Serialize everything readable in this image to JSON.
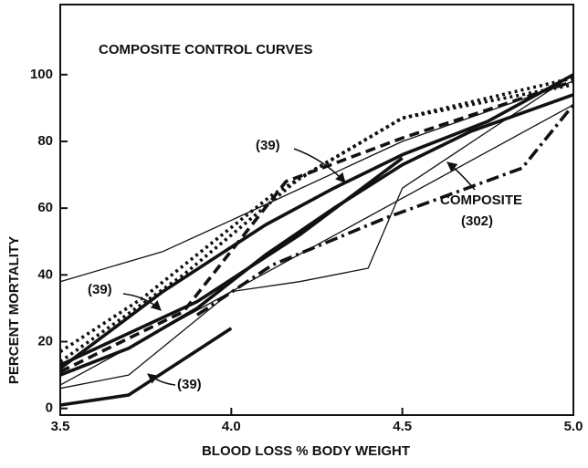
{
  "chart_data": {
    "type": "line",
    "title": "COMPOSITE CONTROL CURVES",
    "x_label": "BLOOD LOSS % BODY WEIGHT",
    "y_label": "PERCENT MORTALITY",
    "annotations": [
      "(39)",
      "(39)",
      "(39)",
      "COMPOSITE",
      "(302)"
    ],
    "xlim": [
      3.5,
      5.0
    ],
    "xticks": [
      3.5,
      {
        "value": 4,
        "label": "4.0"
      },
      4.5,
      {
        "value": 5,
        "label": "5.0"
      }
    ],
    "ylim": [
      -2,
      121
    ],
    "yticks": [
      0,
      20,
      40,
      60,
      80,
      100
    ],
    "grid": false,
    "series": [
      {
        "color": "#111111",
        "dash": "solid",
        "weight": "heavy",
        "x": [
          3.5,
          3.7,
          3.9,
          4.1,
          4.3,
          4.5,
          4.7,
          5.0
        ],
        "values": [
          10,
          18,
          30,
          46,
          60,
          73,
          83,
          94
        ]
      },
      {
        "color": "#111111",
        "dash": "solid",
        "weight": "heavy",
        "x": [
          3.5,
          3.8,
          4.1,
          4.3,
          4.5,
          4.75,
          5.0
        ],
        "values": [
          12,
          35,
          55,
          66,
          76,
          86,
          100
        ]
      },
      {
        "color": "#111111",
        "dash": "solid",
        "weight": "heavy",
        "x": [
          3.5,
          3.9,
          4.2,
          4.5
        ],
        "values": [
          13,
          32,
          52,
          75
        ]
      },
      {
        "color": "#111111",
        "dash": "solid",
        "weight": "heavy",
        "x": [
          3.5,
          3.7,
          4.0
        ],
        "values": [
          1,
          4,
          24
        ]
      },
      {
        "color": "#111111",
        "dash": "solid",
        "weight": "light",
        "x": [
          3.5,
          3.8,
          4.12,
          4.5,
          5.0
        ],
        "values": [
          38,
          47,
          62,
          80,
          98
        ]
      },
      {
        "color": "#111111",
        "dash": "solid",
        "weight": "light",
        "x": [
          3.5,
          3.7,
          4.0,
          4.2,
          4.4,
          4.5,
          5.0
        ],
        "values": [
          6,
          10,
          35,
          38,
          42,
          66,
          100
        ]
      },
      {
        "color": "#111111",
        "dash": "solid",
        "weight": "light",
        "x": [
          3.5,
          5.0
        ],
        "values": [
          7,
          91
        ]
      },
      {
        "color": "#111111",
        "dash": "dashdot",
        "weight": "heavy",
        "x": [
          3.9,
          4.12,
          4.45,
          4.85,
          5.0
        ],
        "values": [
          28,
          43,
          57,
          72,
          91
        ]
      },
      {
        "color": "#111111",
        "dash": "dotted",
        "weight": "heavy",
        "x": [
          3.5,
          3.74,
          4.12,
          4.5,
          5.0
        ],
        "values": [
          17,
          33,
          64,
          87,
          99
        ]
      },
      {
        "color": "#111111",
        "dash": "dotted",
        "weight": "heavy",
        "x": [
          3.5,
          3.86,
          4.2,
          4.5,
          5.0
        ],
        "values": [
          14,
          40,
          69,
          87,
          97
        ]
      },
      {
        "color": "#111111",
        "dash": "dashed",
        "weight": "heavy",
        "x": [
          3.5,
          3.86,
          4.16,
          4.5,
          5.0
        ],
        "values": [
          11,
          29,
          68,
          81,
          98
        ]
      }
    ]
  }
}
